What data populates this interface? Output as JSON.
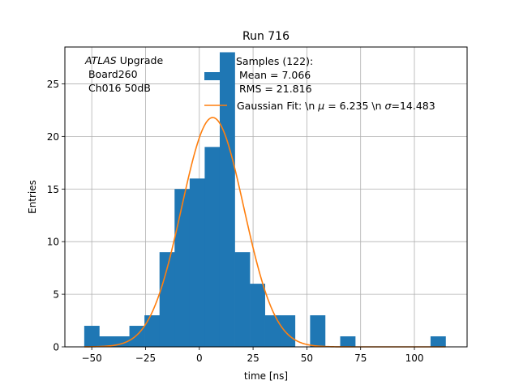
{
  "chart_data": {
    "type": "bar",
    "title": "Run 716",
    "xlabel": "time [ns]",
    "ylabel": "Entries",
    "xlim": [
      -62.5,
      124.5
    ],
    "ylim": [
      0,
      28.5
    ],
    "grid": true,
    "xticks": [
      -50,
      -25,
      0,
      25,
      50,
      75,
      100
    ],
    "yticks": [
      0,
      5,
      10,
      15,
      20,
      25
    ],
    "annotation": {
      "italic": "ATLAS",
      "rest": " Upgrade",
      "line2": " Board260",
      "line3": " Ch016 50dB"
    },
    "legend": {
      "placement": "top-right",
      "hist_label_lines": [
        "Samples (122):",
        " Mean = 7.066",
        " RMS = 21.816"
      ],
      "fit_label_prefix": "Gaussian Fit: \\n ",
      "fit_mu_symbol": "μ",
      "fit_mu_text": " = 6.235 \\n ",
      "fit_sigma_symbol": "σ",
      "fit_sigma_text": "=14.483"
    },
    "histogram": {
      "name": "Samples (122):",
      "color": "#1f77b4",
      "bin_start": -53.5,
      "bin_width": 7,
      "counts": [
        2,
        1,
        1,
        2,
        3,
        9,
        15,
        16,
        19,
        28,
        9,
        6,
        3,
        3,
        0,
        3,
        0,
        1,
        0,
        0,
        0,
        0,
        0,
        1
      ]
    },
    "fit": {
      "name": "Gaussian Fit",
      "color": "#ff7f0e",
      "mu": 6.235,
      "sigma": 14.483,
      "amplitude": 21.8,
      "x_range": [
        -53.5,
        114.5
      ]
    }
  }
}
